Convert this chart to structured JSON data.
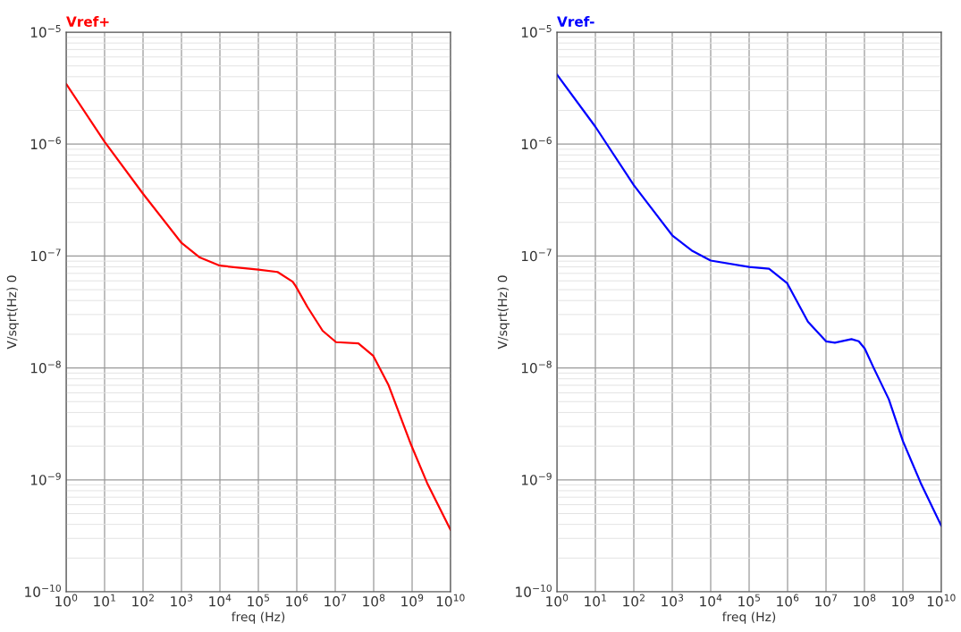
{
  "chart_data": [
    {
      "type": "line",
      "xlabel": "freq (Hz)",
      "ylabel": "V/sqrt(Hz) 0",
      "log": "xy",
      "grid": true,
      "xlim": [
        1,
        10000000000
      ],
      "ylim": [
        1e-10,
        1e-05
      ],
      "xticks": [
        {
          "value": 1,
          "label": "10$^{0}$"
        },
        {
          "value": 10,
          "label": "10$^{1}$"
        },
        {
          "value": 100,
          "label": "10$^{2}$"
        },
        {
          "value": 1000,
          "label": "10$^{3}$"
        },
        {
          "value": 10000,
          "label": "10$^{4}$"
        },
        {
          "value": 100000,
          "label": "10$^{5}$"
        },
        {
          "value": 1000000,
          "label": "10$^{6}$"
        },
        {
          "value": 10000000,
          "label": "10$^{7}$"
        },
        {
          "value": 100000000,
          "label": "10$^{8}$"
        },
        {
          "value": 1000000000,
          "label": "10$^{9}$"
        },
        {
          "value": 10000000000,
          "label": "10$^{10}$"
        }
      ],
      "yticks": [
        {
          "value": 1e-10,
          "label": "10$^{−10}$"
        },
        {
          "value": 1e-09,
          "label": "10$^{−9}$"
        },
        {
          "value": 1e-08,
          "label": "10$^{−8}$"
        },
        {
          "value": 1e-07,
          "label": "10$^{−7}$"
        },
        {
          "value": 1e-06,
          "label": "10$^{−6}$"
        },
        {
          "value": 1e-05,
          "label": "10$^{−5}$"
        }
      ],
      "series": [
        {
          "name": "Vref+",
          "color": "#ff0000",
          "x": [
            1,
            10,
            100,
            1000,
            3000,
            10000,
            100000,
            316000,
            780000,
            930000,
            1900000,
            4700000,
            10500000,
            40000000,
            98000000,
            240000000,
            950000000,
            2450000000,
            10000000000
          ],
          "values": [
            3.45e-06,
            1.05e-06,
            3.6e-07,
            1.31e-07,
            9.7e-08,
            8.2e-08,
            7.55e-08,
            7.2e-08,
            5.9e-08,
            5.4e-08,
            3.5e-08,
            2.15e-08,
            1.7e-08,
            1.66e-08,
            1.28e-08,
            7.1e-09,
            2.04e-09,
            9.4e-10,
            3.57e-10
          ]
        }
      ]
    },
    {
      "type": "line",
      "xlabel": "freq (Hz)",
      "ylabel": "V/sqrt(Hz) 0",
      "log": "xy",
      "grid": true,
      "xlim": [
        1,
        10000000000
      ],
      "ylim": [
        1e-10,
        1e-05
      ],
      "xticks": [
        {
          "value": 1,
          "label": "10$^{0}$"
        },
        {
          "value": 10,
          "label": "10$^{1}$"
        },
        {
          "value": 100,
          "label": "10$^{2}$"
        },
        {
          "value": 1000,
          "label": "10$^{3}$"
        },
        {
          "value": 10000,
          "label": "10$^{4}$"
        },
        {
          "value": 100000,
          "label": "10$^{5}$"
        },
        {
          "value": 1000000,
          "label": "10$^{6}$"
        },
        {
          "value": 10000000,
          "label": "10$^{7}$"
        },
        {
          "value": 100000000,
          "label": "10$^{8}$"
        },
        {
          "value": 1000000000,
          "label": "10$^{9}$"
        },
        {
          "value": 10000000000,
          "label": "10$^{10}$"
        }
      ],
      "yticks": [
        {
          "value": 1e-10,
          "label": "10$^{−10}$"
        },
        {
          "value": 1e-09,
          "label": "10$^{−9}$"
        },
        {
          "value": 1e-08,
          "label": "10$^{−8}$"
        },
        {
          "value": 1e-07,
          "label": "10$^{−7}$"
        },
        {
          "value": 1e-06,
          "label": "10$^{−6}$"
        },
        {
          "value": 1e-05,
          "label": "10$^{−5}$"
        }
      ],
      "series": [
        {
          "name": "Vref-",
          "color": "#0000ff",
          "x": [
            1,
            10,
            100,
            1000,
            3200,
            10000,
            100000,
            330000,
            980000,
            3400000,
            10000000,
            17000000,
            46000000,
            71000000,
            102000000,
            174000000,
            430000000,
            1000000000,
            2900000000,
            10000000000
          ],
          "values": [
            4.19e-06,
            1.43e-06,
            4.3e-07,
            1.53e-07,
            1.12e-07,
            9.1e-08,
            8e-08,
            7.7e-08,
            5.7e-08,
            2.58e-08,
            1.73e-08,
            1.68e-08,
            1.81e-08,
            1.73e-08,
            1.49e-08,
            1e-08,
            5.25e-09,
            2.22e-09,
            9.4e-10,
            3.88e-10
          ]
        }
      ]
    }
  ]
}
